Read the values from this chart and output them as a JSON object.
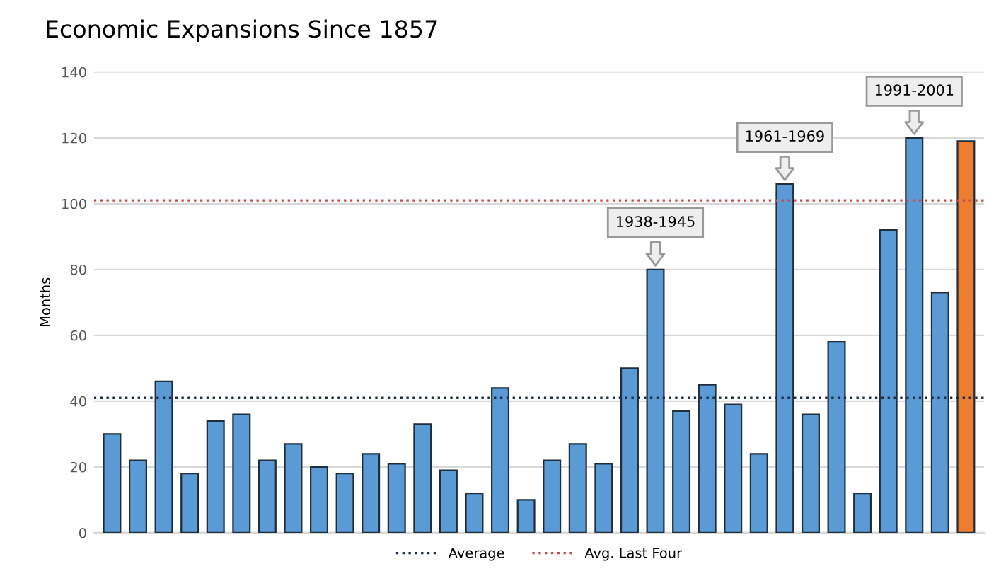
{
  "chart_data": {
    "type": "bar",
    "title": "Economic Expansions Since 1857",
    "ylabel": "Months",
    "categories": [
      null,
      null,
      null,
      null,
      null,
      null,
      null,
      null,
      null,
      null,
      null,
      null,
      null,
      null,
      null,
      null,
      null,
      null,
      null,
      null,
      null,
      null,
      null,
      null,
      null,
      null,
      null,
      null,
      null,
      null,
      null,
      null,
      null,
      null
    ],
    "values": [
      30,
      22,
      46,
      18,
      34,
      36,
      22,
      27,
      20,
      18,
      24,
      21,
      33,
      19,
      12,
      44,
      10,
      22,
      27,
      21,
      50,
      80,
      37,
      45,
      39,
      24,
      106,
      36,
      58,
      12,
      92,
      120,
      73,
      119
    ],
    "colors": [
      "#5b9bd5",
      "#5b9bd5",
      "#5b9bd5",
      "#5b9bd5",
      "#5b9bd5",
      "#5b9bd5",
      "#5b9bd5",
      "#5b9bd5",
      "#5b9bd5",
      "#5b9bd5",
      "#5b9bd5",
      "#5b9bd5",
      "#5b9bd5",
      "#5b9bd5",
      "#5b9bd5",
      "#5b9bd5",
      "#5b9bd5",
      "#5b9bd5",
      "#5b9bd5",
      "#5b9bd5",
      "#5b9bd5",
      "#5b9bd5",
      "#5b9bd5",
      "#5b9bd5",
      "#5b9bd5",
      "#5b9bd5",
      "#5b9bd5",
      "#5b9bd5",
      "#5b9bd5",
      "#5b9bd5",
      "#5b9bd5",
      "#5b9bd5",
      "#5b9bd5",
      "#ed7d31"
    ],
    "ylim": [
      0,
      140
    ],
    "yticks": [
      0,
      20,
      40,
      60,
      80,
      100,
      120,
      140
    ],
    "grid": "y",
    "legend": "bottom",
    "ref_lines": [
      {
        "axis": "y",
        "value": 41,
        "label": "Average",
        "color": "#1f2d4d",
        "line_style": "dotted"
      },
      {
        "axis": "y",
        "value": 101,
        "label": "Avg. Last Four",
        "color": "#c0504d",
        "line_style": "dotted"
      }
    ],
    "annotations": [
      {
        "text": "1938-1945",
        "y": 80
      },
      {
        "text": "1961-1969",
        "y": 106
      },
      {
        "text": "1991-2001",
        "y": 120
      }
    ]
  }
}
